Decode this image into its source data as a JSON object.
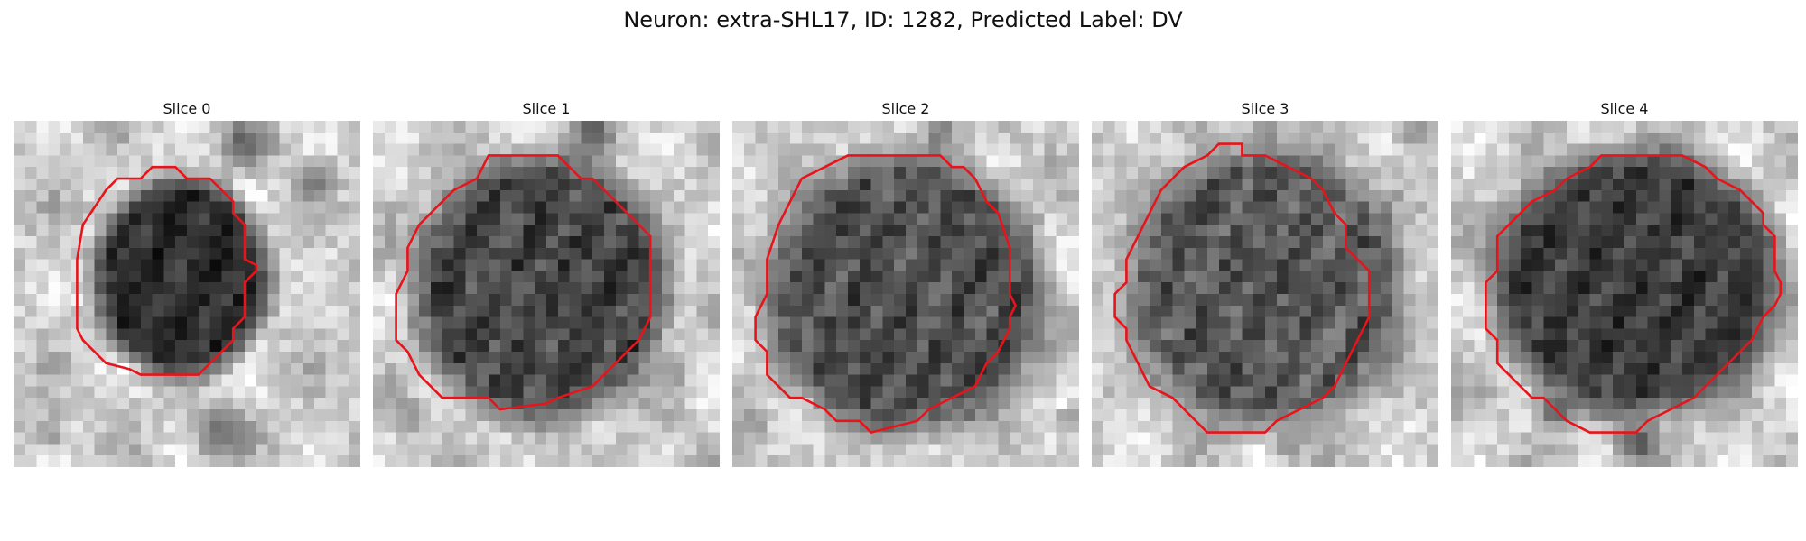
{
  "title": "Neuron: extra-SHL17, ID: 1282, Predicted Label: DV",
  "panels": [
    {
      "title": "Slice 0"
    },
    {
      "title": "Slice 1"
    },
    {
      "title": "Slice 2"
    },
    {
      "title": "Slice 3"
    },
    {
      "title": "Slice 4"
    }
  ],
  "colors": {
    "contour": "#e8141b",
    "background": "#ffffff"
  },
  "colormap": "grayscale"
}
